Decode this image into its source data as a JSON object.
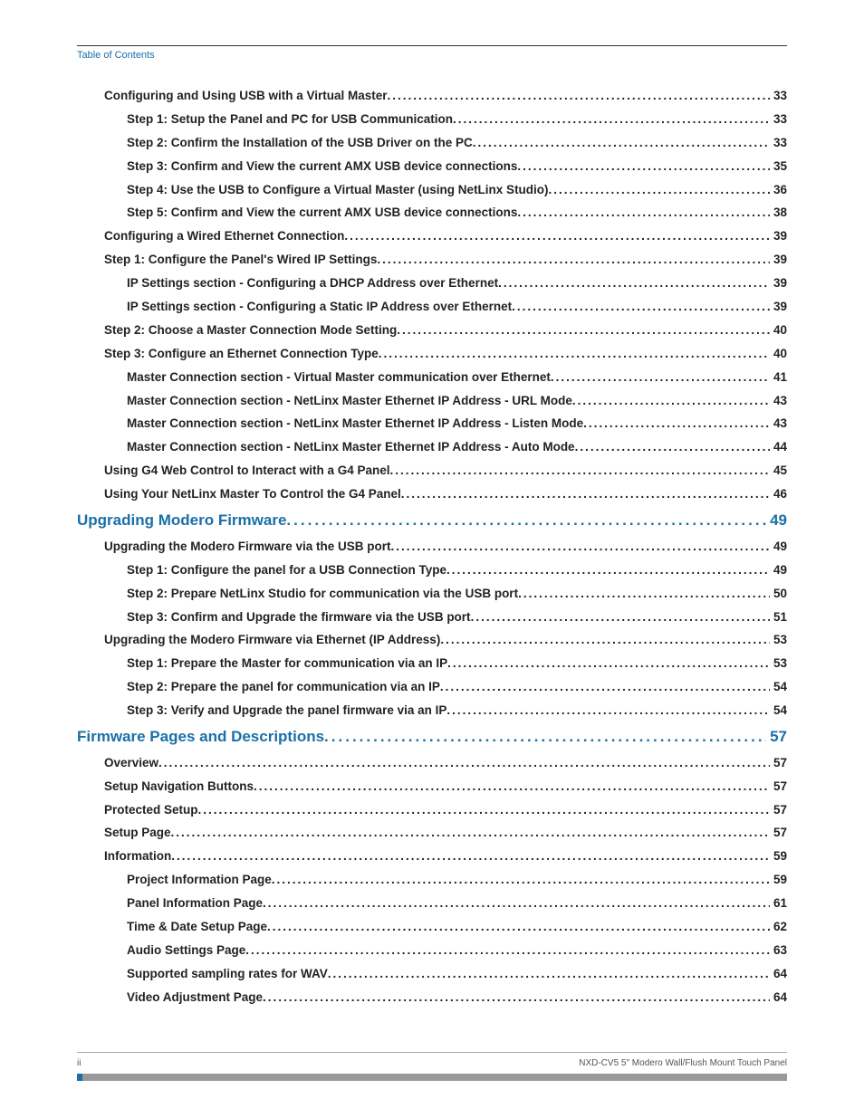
{
  "header": "Table of Contents",
  "footer_left": "ii",
  "footer_right": "NXD-CV5 5\" Modero Wall/Flush Mount Touch Panel",
  "entries": [
    {
      "level": 2,
      "label": "Configuring and Using USB with a Virtual Master",
      "page": "33"
    },
    {
      "level": 3,
      "label": "Step 1: Setup the Panel and PC for USB Communication",
      "page": "33"
    },
    {
      "level": 3,
      "label": "Step 2: Confirm the Installation of the USB Driver on the PC",
      "page": "33"
    },
    {
      "level": 3,
      "label": "Step 3: Confirm and View the current AMX USB device connections",
      "page": "35"
    },
    {
      "level": 3,
      "label": "Step 4: Use the USB to Configure a Virtual Master (using NetLinx Studio)",
      "page": "36"
    },
    {
      "level": 3,
      "label": "Step 5: Confirm and View the current AMX USB device connections",
      "page": "38"
    },
    {
      "level": 2,
      "label": "Configuring a Wired Ethernet Connection",
      "page": "39"
    },
    {
      "level": 2,
      "label": "Step 1: Configure the Panel's Wired IP Settings",
      "page": "39"
    },
    {
      "level": 3,
      "label": "IP Settings section - Configuring a DHCP Address over Ethernet",
      "page": "39"
    },
    {
      "level": 3,
      "label": "IP Settings section - Configuring a Static IP Address over Ethernet",
      "page": "39"
    },
    {
      "level": 2,
      "label": "Step 2: Choose a Master Connection Mode Setting",
      "page": "40"
    },
    {
      "level": 2,
      "label": "Step 3: Configure an Ethernet Connection Type",
      "page": "40"
    },
    {
      "level": 3,
      "label": "Master Connection section - Virtual Master communication over Ethernet",
      "page": "41"
    },
    {
      "level": 3,
      "label": "Master Connection section - NetLinx Master Ethernet IP Address - URL Mode",
      "page": "43"
    },
    {
      "level": 3,
      "label": "Master Connection section - NetLinx Master Ethernet IP Address - Listen Mode",
      "page": "43"
    },
    {
      "level": 3,
      "label": "Master Connection section - NetLinx Master Ethernet IP Address - Auto Mode",
      "page": "44"
    },
    {
      "level": 2,
      "label": "Using G4 Web Control to Interact with a G4 Panel",
      "page": "45"
    },
    {
      "level": 2,
      "label": "Using Your NetLinx Master To Control the G4 Panel",
      "page": "46"
    },
    {
      "level": 1,
      "label": "Upgrading Modero Firmware",
      "page": "49"
    },
    {
      "level": 2,
      "label": "Upgrading the Modero Firmware via the USB port",
      "page": "49"
    },
    {
      "level": 3,
      "label": "Step 1: Configure the panel for a USB Connection Type",
      "page": "49"
    },
    {
      "level": 3,
      "label": "Step 2: Prepare NetLinx Studio for communication via the USB port",
      "page": "50"
    },
    {
      "level": 3,
      "label": "Step 3: Confirm and Upgrade the firmware via the USB port",
      "page": "51"
    },
    {
      "level": 2,
      "label": "Upgrading the Modero Firmware via Ethernet (IP Address)",
      "page": "53"
    },
    {
      "level": 3,
      "label": "Step 1: Prepare the Master for communication via an IP",
      "page": "53"
    },
    {
      "level": 3,
      "label": "Step 2: Prepare the panel for communication via an IP",
      "page": "54"
    },
    {
      "level": 3,
      "label": "Step 3: Verify and Upgrade the panel firmware via an IP",
      "page": "54"
    },
    {
      "level": 1,
      "label": "Firmware Pages and Descriptions",
      "page": "57"
    },
    {
      "level": 2,
      "label": "Overview",
      "page": "57"
    },
    {
      "level": 2,
      "label": "Setup Navigation Buttons",
      "page": "57"
    },
    {
      "level": 2,
      "label": "Protected Setup",
      "page": "57"
    },
    {
      "level": 2,
      "label": "Setup Page",
      "page": "57"
    },
    {
      "level": 2,
      "label": "Information",
      "page": "59"
    },
    {
      "level": 3,
      "label": "Project Information Page",
      "page": "59"
    },
    {
      "level": 3,
      "label": "Panel Information Page",
      "page": "61"
    },
    {
      "level": 3,
      "label": "Time & Date Setup Page",
      "page": "62"
    },
    {
      "level": 3,
      "label": "Audio Settings Page",
      "page": "63"
    },
    {
      "level": 3,
      "label": "Supported sampling rates for WAV",
      "page": "64"
    },
    {
      "level": 3,
      "label": "Video Adjustment Page",
      "page": "64"
    }
  ]
}
